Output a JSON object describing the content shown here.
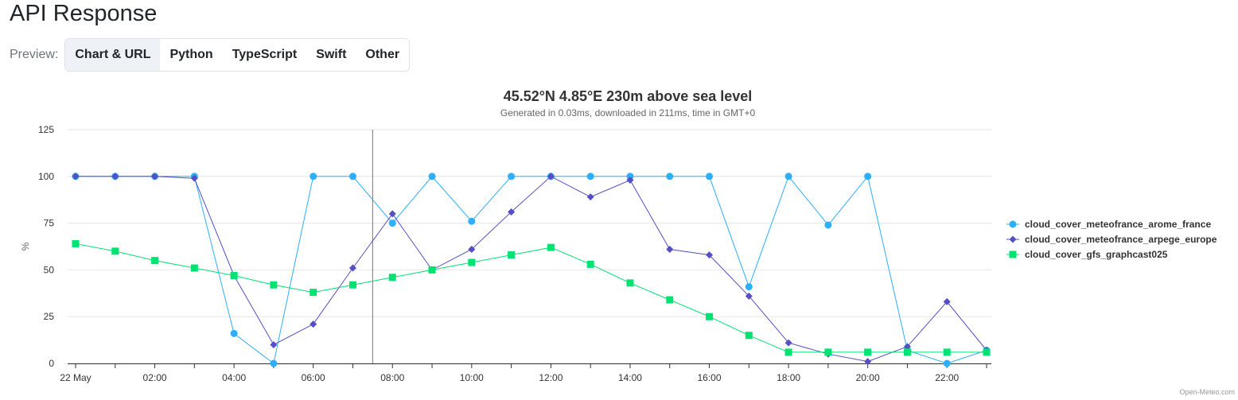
{
  "page": {
    "heading": "API Response"
  },
  "preview": {
    "label": "Preview:",
    "tabs": [
      {
        "label": "Chart & URL",
        "active": true
      },
      {
        "label": "Python",
        "active": false
      },
      {
        "label": "TypeScript",
        "active": false
      },
      {
        "label": "Swift",
        "active": false
      },
      {
        "label": "Other",
        "active": false
      }
    ]
  },
  "chart_data": {
    "type": "line",
    "title": "45.52°N 4.85°E 230m above sea level",
    "subtitle": "Generated in 0.03ms, downloaded in 211ms, time in GMT+0",
    "ylabel": "%",
    "ylim": [
      0,
      125
    ],
    "yticks": [
      0,
      25,
      50,
      75,
      100,
      125
    ],
    "x": [
      "22 May 00:00",
      "01:00",
      "02:00",
      "03:00",
      "04:00",
      "05:00",
      "06:00",
      "07:00",
      "08:00",
      "09:00",
      "10:00",
      "11:00",
      "12:00",
      "13:00",
      "14:00",
      "15:00",
      "16:00",
      "17:00",
      "18:00",
      "19:00",
      "20:00",
      "21:00",
      "22:00",
      "23:00"
    ],
    "xtick_labels": [
      "22 May",
      "02:00",
      "04:00",
      "06:00",
      "08:00",
      "10:00",
      "12:00",
      "14:00",
      "16:00",
      "18:00",
      "20:00",
      "22:00"
    ],
    "crosshair_x": "07:30",
    "grid": true,
    "legend_position": "right",
    "credit": "Open-Meteo.com",
    "series": [
      {
        "name": "cloud_cover_meteofrance_arome_france",
        "color": "#2caffe",
        "marker": "circle",
        "values": [
          100,
          100,
          100,
          100,
          16,
          0,
          100,
          100,
          75,
          100,
          76,
          100,
          100,
          100,
          100,
          100,
          100,
          41,
          100,
          74,
          100,
          7,
          0,
          7
        ]
      },
      {
        "name": "cloud_cover_meteofrance_arpege_europe",
        "color": "#544fc5",
        "marker": "diamond",
        "values": [
          100,
          100,
          100,
          99,
          47,
          10,
          21,
          51,
          80,
          50,
          61,
          81,
          100,
          89,
          98,
          61,
          58,
          36,
          11,
          5,
          1,
          9,
          33,
          7
        ]
      },
      {
        "name": "cloud_cover_gfs_graphcast025",
        "color": "#00e272",
        "marker": "square",
        "values": [
          64,
          60,
          55,
          51,
          47,
          42,
          38,
          42,
          46,
          50,
          54,
          58,
          62,
          53,
          43,
          34,
          25,
          15,
          6,
          6,
          6,
          6,
          6,
          6
        ]
      }
    ]
  }
}
